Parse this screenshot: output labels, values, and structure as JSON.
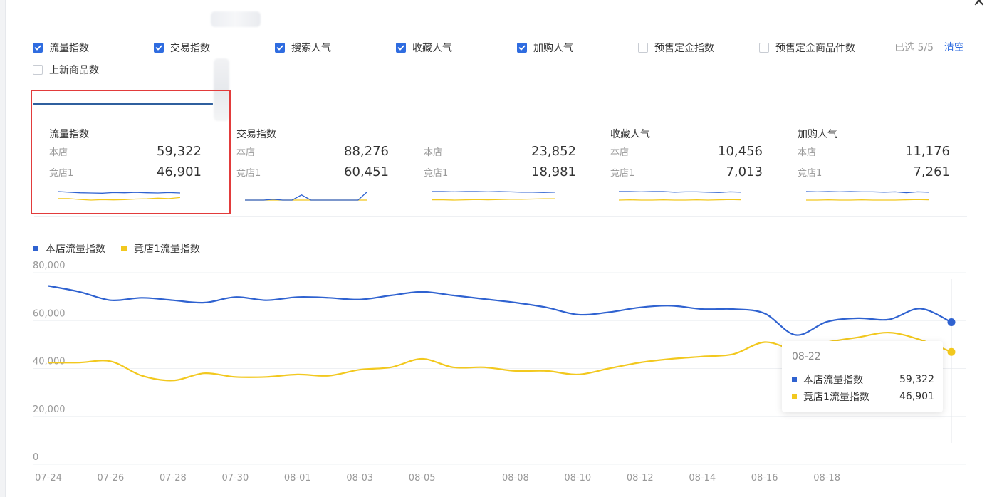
{
  "metrics_selector": {
    "items": [
      {
        "label": "流量指数",
        "checked": true
      },
      {
        "label": "交易指数",
        "checked": true
      },
      {
        "label": "搜索人气",
        "checked": true
      },
      {
        "label": "收藏人气",
        "checked": true
      },
      {
        "label": "加购人气",
        "checked": true
      },
      {
        "label": "预售定金指数",
        "checked": false
      },
      {
        "label": "预售定金商品件数",
        "checked": false
      },
      {
        "label": "上新商品数",
        "checked": false
      }
    ],
    "selected_count": "已选 5/5",
    "clear_label": "清空"
  },
  "cards": [
    {
      "title": "流量指数",
      "own_label": "本店",
      "own_value": "59,322",
      "rival_label": "竟店1",
      "rival_value": "46,901",
      "own_trend": [
        74.5,
        72,
        69,
        68,
        67,
        70,
        69,
        71,
        69,
        68,
        70,
        68
      ],
      "rival_trend": [
        42,
        42,
        38,
        35,
        37,
        36,
        37,
        40,
        41,
        44,
        42,
        46.9
      ]
    },
    {
      "title": "交易指数",
      "own_label": "本店",
      "own_value": "88,276",
      "rival_label": "竟店1",
      "rival_value": "60,451",
      "own_trend": [
        60,
        60,
        60,
        61,
        60,
        60,
        66,
        60,
        60,
        60,
        60,
        60,
        60,
        70
      ],
      "rival_trend": [
        60,
        60,
        60,
        60,
        60,
        60,
        60,
        60,
        60,
        60,
        60,
        60,
        60,
        60
      ]
    },
    {
      "title": "",
      "own_label": "本店",
      "own_value": "23,852",
      "rival_label": "竟店1",
      "rival_value": "18,981",
      "own_trend": [
        70,
        70,
        69,
        70,
        70,
        69,
        70,
        69,
        68,
        68,
        67,
        68
      ],
      "rival_trend": [
        40,
        40,
        39,
        40,
        41,
        40,
        41,
        42,
        42,
        43,
        44,
        44
      ]
    },
    {
      "title": "收藏人气",
      "own_label": "本店",
      "own_value": "10,456",
      "rival_label": "竟店1",
      "rival_value": "7,013",
      "own_trend": [
        70,
        70,
        69,
        70,
        70,
        68,
        69,
        69,
        68,
        67,
        69,
        68
      ],
      "rival_trend": [
        40,
        41,
        40,
        40,
        41,
        40,
        40,
        41,
        40,
        41,
        42,
        41
      ]
    },
    {
      "title": "加购人气",
      "own_label": "本店",
      "own_value": "11,176",
      "rival_label": "竟店1",
      "rival_value": "7,261",
      "own_trend": [
        70,
        69,
        70,
        69,
        70,
        69,
        69,
        68,
        69,
        66,
        69,
        68
      ],
      "rival_trend": [
        40,
        40,
        41,
        40,
        40,
        41,
        40,
        40,
        40,
        41,
        42,
        41
      ]
    }
  ],
  "chart_data": {
    "type": "line",
    "x": [
      "07-24",
      "07-25",
      "07-26",
      "07-27",
      "07-28",
      "07-29",
      "07-30",
      "07-31",
      "08-01",
      "08-02",
      "08-03",
      "08-04",
      "08-05",
      "08-06",
      "08-07",
      "08-08",
      "08-09",
      "08-10",
      "08-11",
      "08-12",
      "08-13",
      "08-14",
      "08-15",
      "08-16",
      "08-17",
      "08-18",
      "08-19",
      "08-20",
      "08-21",
      "08-22"
    ],
    "tick_labels": [
      "07-24",
      "07-26",
      "07-28",
      "07-30",
      "08-01",
      "08-03",
      "08-05",
      "08-08",
      "08-10",
      "08-12",
      "08-14",
      "08-16",
      "08-18"
    ],
    "tick_indices": [
      0,
      2,
      4,
      6,
      8,
      10,
      12,
      15,
      17,
      19,
      21,
      23,
      25
    ],
    "series": [
      {
        "name": "本店流量指数",
        "color": "#2f62d0",
        "values": [
          74500,
          72000,
          68500,
          69500,
          68500,
          67500,
          69800,
          68500,
          69800,
          69500,
          68800,
          70500,
          72000,
          70500,
          69000,
          67500,
          65500,
          62500,
          63500,
          65500,
          66200,
          64800,
          64800,
          63000,
          54000,
          59500,
          61000,
          60500,
          65000,
          59322
        ]
      },
      {
        "name": "竟店1流量指数",
        "color": "#f2c81e",
        "values": [
          42500,
          42500,
          43000,
          37000,
          35000,
          38000,
          36500,
          36500,
          37500,
          37000,
          39500,
          40500,
          44000,
          40500,
          40500,
          39000,
          39000,
          37500,
          40000,
          42500,
          44000,
          45000,
          46000,
          51000,
          48000,
          51000,
          53000,
          55000,
          52000,
          46901
        ]
      }
    ],
    "ylim": [
      0,
      80000
    ],
    "yticks": [
      "80,000",
      "60,000",
      "40,000",
      "20,000",
      "0"
    ],
    "ytick_values": [
      80000,
      60000,
      40000,
      20000,
      0
    ],
    "grid": true,
    "legend": "top-left"
  },
  "tooltip": {
    "date": "08-22",
    "rows": [
      {
        "label": "本店流量指数",
        "value": "59,322",
        "color": "#2f62d0"
      },
      {
        "label": "竟店1流量指数",
        "value": "46,901",
        "color": "#f2c81e"
      }
    ]
  },
  "icons": {
    "close": "close-icon",
    "checkbox": "checkmark-icon"
  }
}
